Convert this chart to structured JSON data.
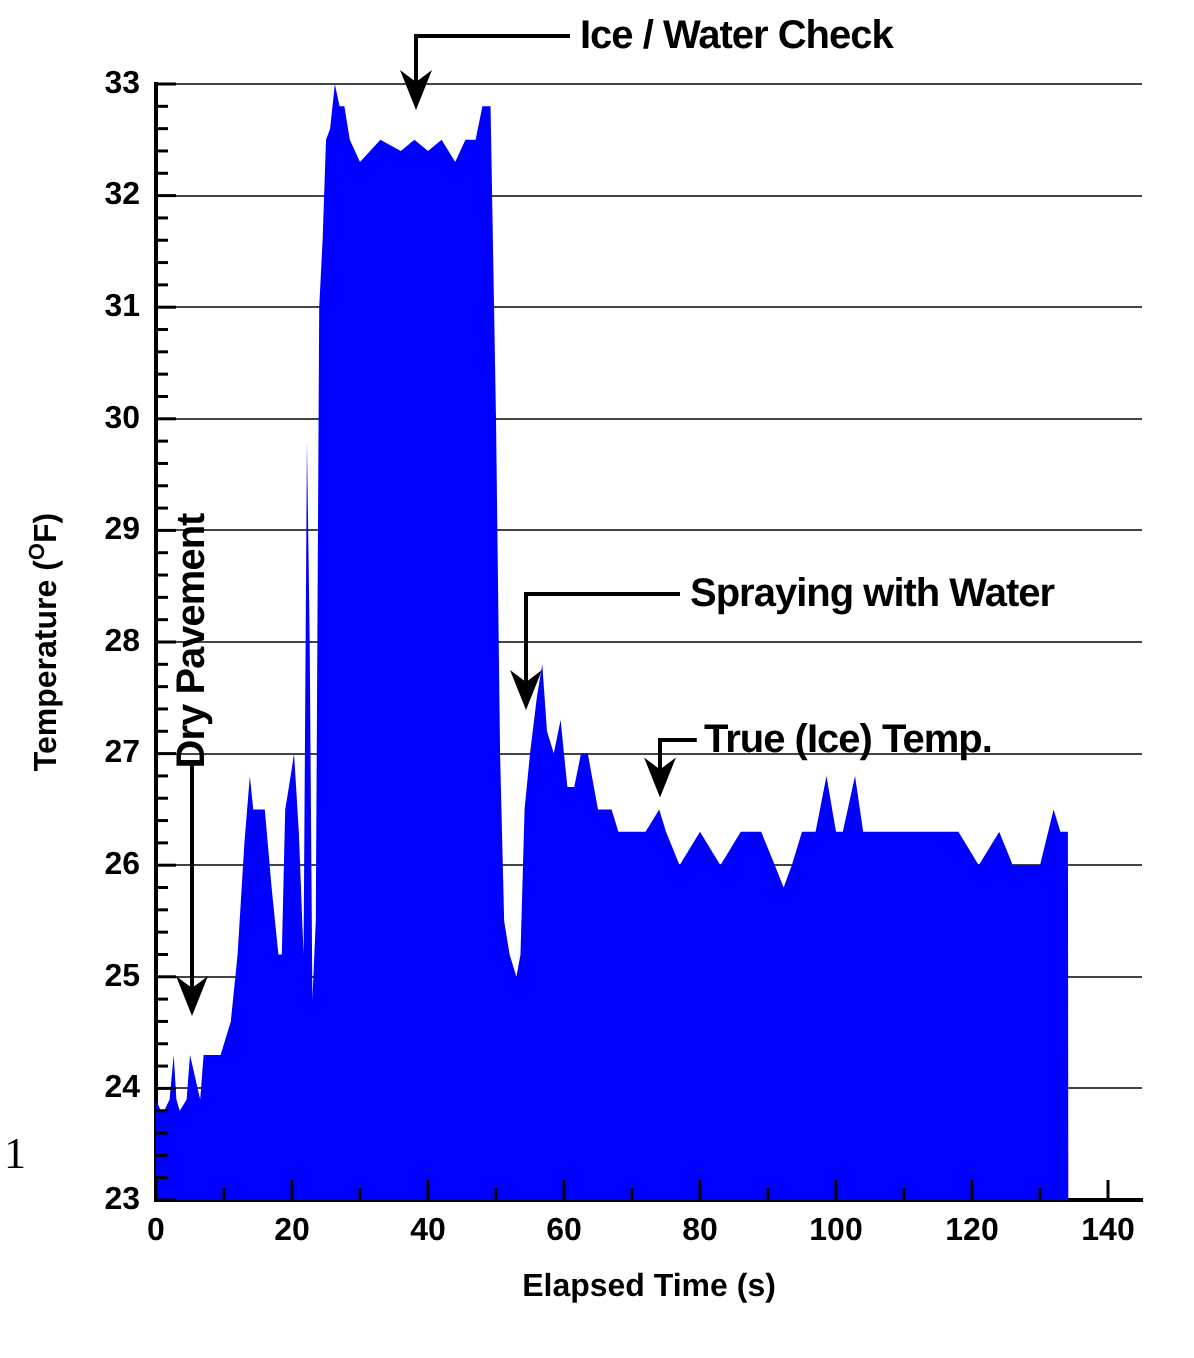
{
  "chart_data": {
    "type": "area",
    "xlabel": "Elapsed Time (s)",
    "ylabel": "Temperature ($^{O}$F)",
    "color": "#0000ff",
    "x": [
      0,
      0.7,
      1.2,
      2,
      2.6,
      3,
      3.5,
      4.5,
      5,
      6.5,
      7,
      7.5,
      8.5,
      9.5,
      11,
      12,
      13,
      13.8,
      14.3,
      15,
      16,
      17,
      18,
      18.5,
      19,
      19.8,
      20.3,
      21,
      21.7,
      22.2,
      22.6,
      23,
      23.5,
      24,
      24.5,
      25,
      25.6,
      26.3,
      27,
      27.7,
      28.5,
      30,
      33,
      36,
      38,
      40,
      42,
      44,
      45.5,
      47,
      48,
      49.2,
      50,
      50.6,
      51.2,
      52,
      53,
      53.6,
      54.2,
      55,
      56,
      56.8,
      57.5,
      58.5,
      59.5,
      60.5,
      61.5,
      62.5,
      63.5,
      65,
      66,
      67,
      68,
      70,
      72,
      74,
      75,
      77,
      80,
      83,
      86,
      89,
      91,
      92.3,
      93.5,
      95,
      97,
      98.6,
      100,
      101,
      102.8,
      104,
      106,
      110,
      114,
      118,
      121,
      124,
      126,
      128,
      130,
      132,
      133,
      134.1,
      134.2
    ],
    "values": [
      23.9,
      23.8,
      23.8,
      23.9,
      24.3,
      23.9,
      23.8,
      23.9,
      24.3,
      23.9,
      24.3,
      24.3,
      24.3,
      24.3,
      24.6,
      25.2,
      26.2,
      26.8,
      26.5,
      26.5,
      26.5,
      25.8,
      25.2,
      25.2,
      26.5,
      26.8,
      27.0,
      26.3,
      25.2,
      29.8,
      28.0,
      24.8,
      25.5,
      31.0,
      31.6,
      32.5,
      32.6,
      33.0,
      32.8,
      32.8,
      32.5,
      32.3,
      32.5,
      32.4,
      32.5,
      32.4,
      32.5,
      32.3,
      32.5,
      32.5,
      32.8,
      32.8,
      30.0,
      27.0,
      25.5,
      25.2,
      25.0,
      25.2,
      26.5,
      27.0,
      27.5,
      27.8,
      27.2,
      27.0,
      27.3,
      26.7,
      26.7,
      27.0,
      27.0,
      26.5,
      26.5,
      26.5,
      26.3,
      26.3,
      26.3,
      26.5,
      26.3,
      26.0,
      26.3,
      26.0,
      26.3,
      26.3,
      26.0,
      25.8,
      26.0,
      26.3,
      26.3,
      26.8,
      26.3,
      26.3,
      26.8,
      26.3,
      26.3,
      26.3,
      26.3,
      26.3,
      26.0,
      26.3,
      26.0,
      26.0,
      26.0,
      26.5,
      26.3,
      26.3,
      23.0
    ],
    "xlim": [
      0,
      145
    ],
    "ylim": [
      23,
      33
    ],
    "xticks": [
      0,
      {
        "value": 10,
        "label": null
      },
      20,
      {
        "value": 30,
        "label": null
      },
      40,
      {
        "value": 50,
        "label": null
      },
      60,
      {
        "value": 70,
        "label": null
      },
      80,
      {
        "value": 90,
        "label": null
      },
      100,
      {
        "value": 110,
        "label": null
      },
      120,
      {
        "value": 130,
        "label": null
      },
      140
    ],
    "yticks": [
      23,
      {
        "value": 23.2,
        "label": null
      },
      {
        "value": 23.4,
        "label": null
      },
      {
        "value": 23.6,
        "label": null
      },
      {
        "value": 23.8,
        "label": null
      },
      24,
      {
        "value": 24.2,
        "label": null
      },
      {
        "value": 24.4,
        "label": null
      },
      {
        "value": 24.6,
        "label": null
      },
      {
        "value": 24.8,
        "label": null
      },
      25,
      {
        "value": 25.2,
        "label": null
      },
      {
        "value": 25.4,
        "label": null
      },
      {
        "value": 25.6,
        "label": null
      },
      {
        "value": 25.8,
        "label": null
      },
      26,
      {
        "value": 26.2,
        "label": null
      },
      {
        "value": 26.4,
        "label": null
      },
      {
        "value": 26.6,
        "label": null
      },
      {
        "value": 26.8,
        "label": null
      },
      27,
      {
        "value": 27.2,
        "label": null
      },
      {
        "value": 27.4,
        "label": null
      },
      {
        "value": 27.6,
        "label": null
      },
      {
        "value": 27.8,
        "label": null
      },
      28,
      {
        "value": 28.2,
        "label": null
      },
      {
        "value": 28.4,
        "label": null
      },
      {
        "value": 28.6,
        "label": null
      },
      {
        "value": 28.8,
        "label": null
      },
      29,
      {
        "value": 29.2,
        "label": null
      },
      {
        "value": 29.4,
        "label": null
      },
      {
        "value": 29.6,
        "label": null
      },
      {
        "value": 29.8,
        "label": null
      },
      30,
      {
        "value": 30.2,
        "label": null
      },
      {
        "value": 30.4,
        "label": null
      },
      {
        "value": 30.6,
        "label": null
      },
      {
        "value": 30.8,
        "label": null
      },
      31,
      {
        "value": 31.2,
        "label": null
      },
      {
        "value": 31.4,
        "label": null
      },
      {
        "value": 31.6,
        "label": null
      },
      {
        "value": 31.8,
        "label": null
      },
      32,
      {
        "value": 32.2,
        "label": null
      },
      {
        "value": 32.4,
        "label": null
      },
      {
        "value": 32.6,
        "label": null
      },
      {
        "value": 32.8,
        "label": null
      },
      33
    ],
    "grid": "y",
    "annotations": [
      "Dry Pavement",
      "Ice / Water Check",
      "Spraying with Water",
      {
        "text": "True (Ice) Temp.",
        "x": 74,
        "y": 26.5
      },
      "1"
    ]
  }
}
